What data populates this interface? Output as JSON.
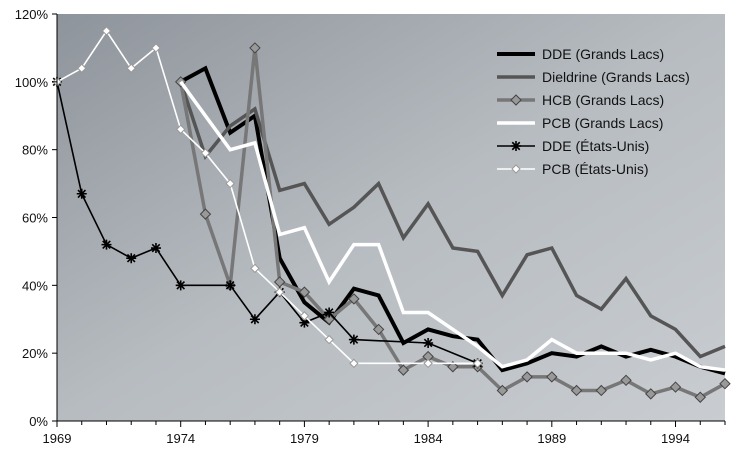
{
  "chart_data": {
    "type": "line",
    "title": "",
    "xlabel": "",
    "ylabel": "",
    "xlim": [
      1969,
      1996
    ],
    "ylim": [
      0,
      120
    ],
    "x_ticks": [
      1969,
      1974,
      1979,
      1984,
      1989,
      1994
    ],
    "x_tick_labels": [
      "1969",
      "1974",
      "1979",
      "1984",
      "1989",
      "1994"
    ],
    "y_ticks": [
      0,
      20,
      40,
      60,
      80,
      100,
      120
    ],
    "y_tick_labels": [
      "0%",
      "20%",
      "40%",
      "60%",
      "80%",
      "100%",
      "120%"
    ],
    "grid": false,
    "legend_position": "top-right",
    "series": [
      {
        "name": "DDE (Grands Lacs)",
        "color": "#000000",
        "width": 4,
        "marker": "none",
        "points": [
          [
            1974,
            100
          ],
          [
            1975,
            104
          ],
          [
            1976,
            85
          ],
          [
            1977,
            90
          ],
          [
            1978,
            48
          ],
          [
            1979,
            35
          ],
          [
            1980,
            29
          ],
          [
            1981,
            39
          ],
          [
            1982,
            37
          ],
          [
            1983,
            23
          ],
          [
            1984,
            27
          ],
          [
            1985,
            25
          ],
          [
            1986,
            24
          ],
          [
            1987,
            15
          ],
          [
            1988,
            17
          ],
          [
            1989,
            20
          ],
          [
            1990,
            19
          ],
          [
            1991,
            22
          ],
          [
            1992,
            19
          ],
          [
            1993,
            21
          ],
          [
            1994,
            19
          ],
          [
            1995,
            16
          ],
          [
            1996,
            14
          ]
        ]
      },
      {
        "name": "Dieldrine (Grands Lacs)",
        "color": "#555555",
        "width": 3.5,
        "marker": "none",
        "points": [
          [
            1974,
            100
          ],
          [
            1975,
            78
          ],
          [
            1976,
            87
          ],
          [
            1977,
            92
          ],
          [
            1978,
            68
          ],
          [
            1979,
            70
          ],
          [
            1980,
            58
          ],
          [
            1981,
            63
          ],
          [
            1982,
            70
          ],
          [
            1983,
            54
          ],
          [
            1984,
            64
          ],
          [
            1985,
            51
          ],
          [
            1986,
            50
          ],
          [
            1987,
            37
          ],
          [
            1988,
            49
          ],
          [
            1989,
            51
          ],
          [
            1990,
            37
          ],
          [
            1991,
            33
          ],
          [
            1992,
            42
          ],
          [
            1993,
            31
          ],
          [
            1994,
            27
          ],
          [
            1995,
            19
          ],
          [
            1996,
            22
          ]
        ]
      },
      {
        "name": "HCB (Grands Lacs)",
        "color": "#777777",
        "width": 3.5,
        "marker": "diamond",
        "points": [
          [
            1974,
            100
          ],
          [
            1975,
            61
          ],
          [
            1976,
            40
          ],
          [
            1977,
            110
          ],
          [
            1978,
            41
          ],
          [
            1979,
            38
          ],
          [
            1980,
            30
          ],
          [
            1981,
            36
          ],
          [
            1982,
            27
          ],
          [
            1983,
            15
          ],
          [
            1984,
            19
          ],
          [
            1985,
            16
          ],
          [
            1986,
            16
          ],
          [
            1987,
            9
          ],
          [
            1988,
            13
          ],
          [
            1989,
            13
          ],
          [
            1990,
            9
          ],
          [
            1991,
            9
          ],
          [
            1992,
            12
          ],
          [
            1993,
            8
          ],
          [
            1994,
            10
          ],
          [
            1995,
            7
          ],
          [
            1996,
            11
          ]
        ]
      },
      {
        "name": "PCB (Grands Lacs)",
        "color": "#ffffff",
        "width": 3.5,
        "marker": "none",
        "points": [
          [
            1974,
            100
          ],
          [
            1975,
            90
          ],
          [
            1976,
            80
          ],
          [
            1977,
            82
          ],
          [
            1978,
            55
          ],
          [
            1979,
            57
          ],
          [
            1980,
            41
          ],
          [
            1981,
            52
          ],
          [
            1982,
            52
          ],
          [
            1983,
            32
          ],
          [
            1984,
            32
          ],
          [
            1985,
            27
          ],
          [
            1986,
            22
          ],
          [
            1987,
            16
          ],
          [
            1988,
            18
          ],
          [
            1989,
            24
          ],
          [
            1990,
            20
          ],
          [
            1991,
            20
          ],
          [
            1992,
            20
          ],
          [
            1993,
            18
          ],
          [
            1994,
            20
          ],
          [
            1995,
            16
          ],
          [
            1996,
            15
          ]
        ]
      },
      {
        "name": "DDE (États-Unis)",
        "color": "#000000",
        "width": 1.6,
        "marker": "star",
        "points": [
          [
            1969,
            100
          ],
          [
            1970,
            67
          ],
          [
            1971,
            52
          ],
          [
            1972,
            48
          ],
          [
            1973,
            51
          ],
          [
            1974,
            40
          ],
          [
            1976,
            40
          ],
          [
            1977,
            30
          ],
          [
            1978,
            38
          ],
          [
            1979,
            29
          ],
          [
            1980,
            32
          ],
          [
            1981,
            24
          ],
          [
            1984,
            23
          ],
          [
            1986,
            17
          ]
        ]
      },
      {
        "name": "PCB (États-Unis)",
        "color": "#ffffff",
        "width": 1.6,
        "marker": "open-diamond",
        "points": [
          [
            1969,
            100
          ],
          [
            1970,
            104
          ],
          [
            1971,
            115
          ],
          [
            1972,
            104
          ],
          [
            1973,
            110
          ],
          [
            1974,
            86
          ],
          [
            1975,
            79
          ],
          [
            1976,
            70
          ],
          [
            1977,
            45
          ],
          [
            1978,
            38
          ],
          [
            1979,
            31
          ],
          [
            1980,
            24
          ],
          [
            1981,
            17
          ],
          [
            1984,
            17
          ],
          [
            1986,
            17
          ]
        ]
      }
    ]
  }
}
